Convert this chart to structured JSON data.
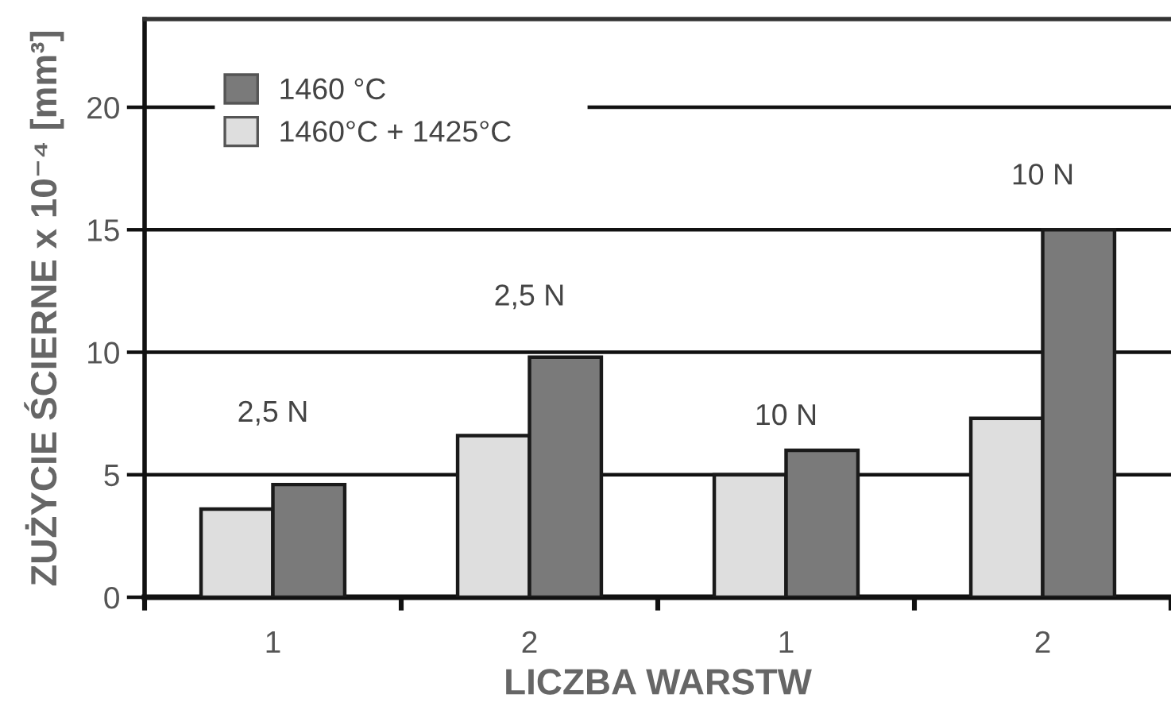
{
  "chart_data": {
    "type": "bar",
    "xlabel": "LICZBA WARSTW",
    "ylabel": "ZUŻYCIE ŚCIERNE x 10⁻⁴ [mm³]",
    "categories": [
      "1",
      "2",
      "1",
      "2"
    ],
    "series": [
      {
        "name": "1460°C + 1425°C",
        "color": "#dedede",
        "values": [
          3.6,
          6.6,
          5.0,
          7.3
        ]
      },
      {
        "name": "1460 °C",
        "color": "#7a7a7a",
        "values": [
          4.6,
          9.8,
          6.0,
          15.0
        ]
      }
    ],
    "ylim": [
      0,
      23.6
    ],
    "yticks": [
      0,
      5,
      10,
      15,
      20
    ],
    "grid": "y",
    "legend": "top left",
    "annotations": [
      "2,5 N",
      "2,5 N",
      "10 N",
      "10 N"
    ]
  }
}
